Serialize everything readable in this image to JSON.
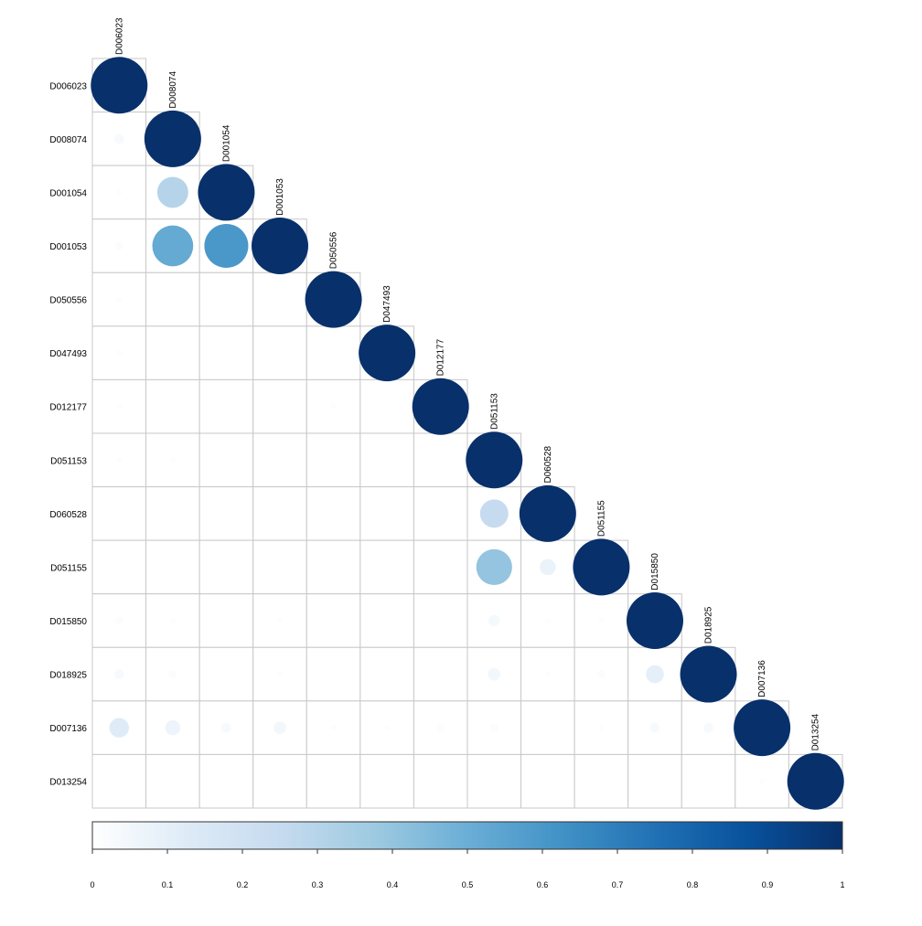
{
  "chart_data": {
    "type": "heatmap",
    "subtype": "correlation-circle-lower-triangle",
    "title": "",
    "labels": [
      "D006023",
      "D008074",
      "D001054",
      "D001053",
      "D050556",
      "D047493",
      "D012177",
      "D051153",
      "D060528",
      "D051155",
      "D015850",
      "D018925",
      "D007136",
      "D013254"
    ],
    "matrix": [
      [
        1.0
      ],
      [
        0.03,
        1.0
      ],
      [
        0.01,
        0.3,
        1.0
      ],
      [
        0.02,
        0.52,
        0.6,
        1.0
      ],
      [
        0.01,
        0.0,
        0.0,
        0.0,
        1.0
      ],
      [
        0.01,
        0.0,
        0.0,
        0.0,
        0.0,
        1.0
      ],
      [
        0.01,
        0.0,
        0.0,
        0.0,
        0.01,
        0.0,
        1.0
      ],
      [
        0.01,
        0.01,
        0.0,
        0.0,
        0.0,
        0.0,
        0.0,
        1.0
      ],
      [
        0.0,
        0.0,
        0.0,
        0.0,
        0.0,
        0.0,
        0.0,
        0.25,
        1.0
      ],
      [
        0.0,
        0.0,
        0.0,
        0.0,
        0.0,
        0.0,
        0.0,
        0.4,
        0.08,
        1.0
      ],
      [
        0.02,
        0.01,
        0.0,
        0.01,
        0.0,
        0.0,
        0.0,
        0.04,
        0.01,
        0.01,
        1.0
      ],
      [
        0.03,
        0.02,
        0.0,
        0.01,
        0.0,
        0.0,
        0.0,
        0.05,
        0.01,
        0.02,
        0.1,
        1.0
      ],
      [
        0.12,
        0.07,
        0.03,
        0.05,
        0.01,
        0.01,
        0.02,
        0.02,
        0.0,
        0.01,
        0.03,
        0.03,
        1.0
      ],
      [
        0.0,
        0.0,
        0.0,
        0.0,
        0.0,
        0.0,
        0.0,
        0.0,
        0.0,
        0.0,
        0.0,
        0.0,
        0.01,
        1.0
      ]
    ],
    "colorbar": {
      "range": [
        0,
        1
      ],
      "ticks": [
        "0",
        "0.1",
        "0.2",
        "0.3",
        "0.4",
        "0.5",
        "0.6",
        "0.7",
        "0.8",
        "0.9",
        "1"
      ],
      "colors": [
        "#ffffff",
        "#deebf7",
        "#c6dbef",
        "#9ecae1",
        "#6baed6",
        "#4292c6",
        "#2171b5",
        "#08519c",
        "#08306b"
      ]
    },
    "grid": true,
    "legend_placement": "bottom"
  }
}
